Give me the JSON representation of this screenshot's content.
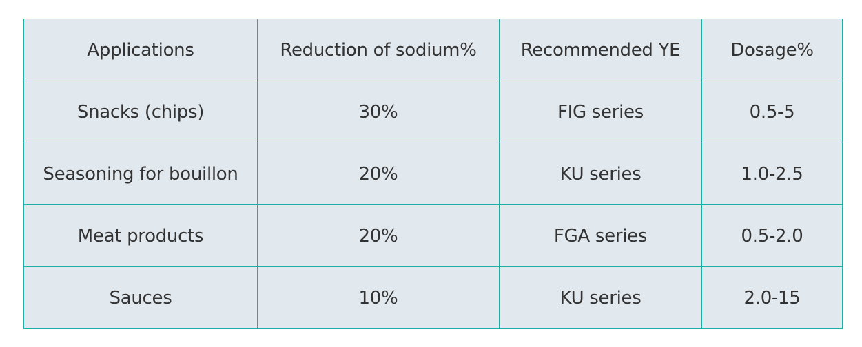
{
  "table": {
    "headers": [
      "Applications",
      "Reduction of sodium%",
      "Recommended YE",
      "Dosage%"
    ],
    "rows": [
      [
        "Snacks (chips)",
        "30%",
        "FIG series",
        "0.5-5"
      ],
      [
        "Seasoning for bouillon",
        "20%",
        "KU series",
        "1.0-2.5"
      ],
      [
        "Meat products",
        "20%",
        "FGA series",
        "0.5-2.0"
      ],
      [
        "Sauces",
        "10%",
        "KU series",
        "2.0-15"
      ]
    ]
  },
  "colors": {
    "border": "#1fb0a5",
    "background": "#e1e8ee",
    "text": "#333333"
  }
}
